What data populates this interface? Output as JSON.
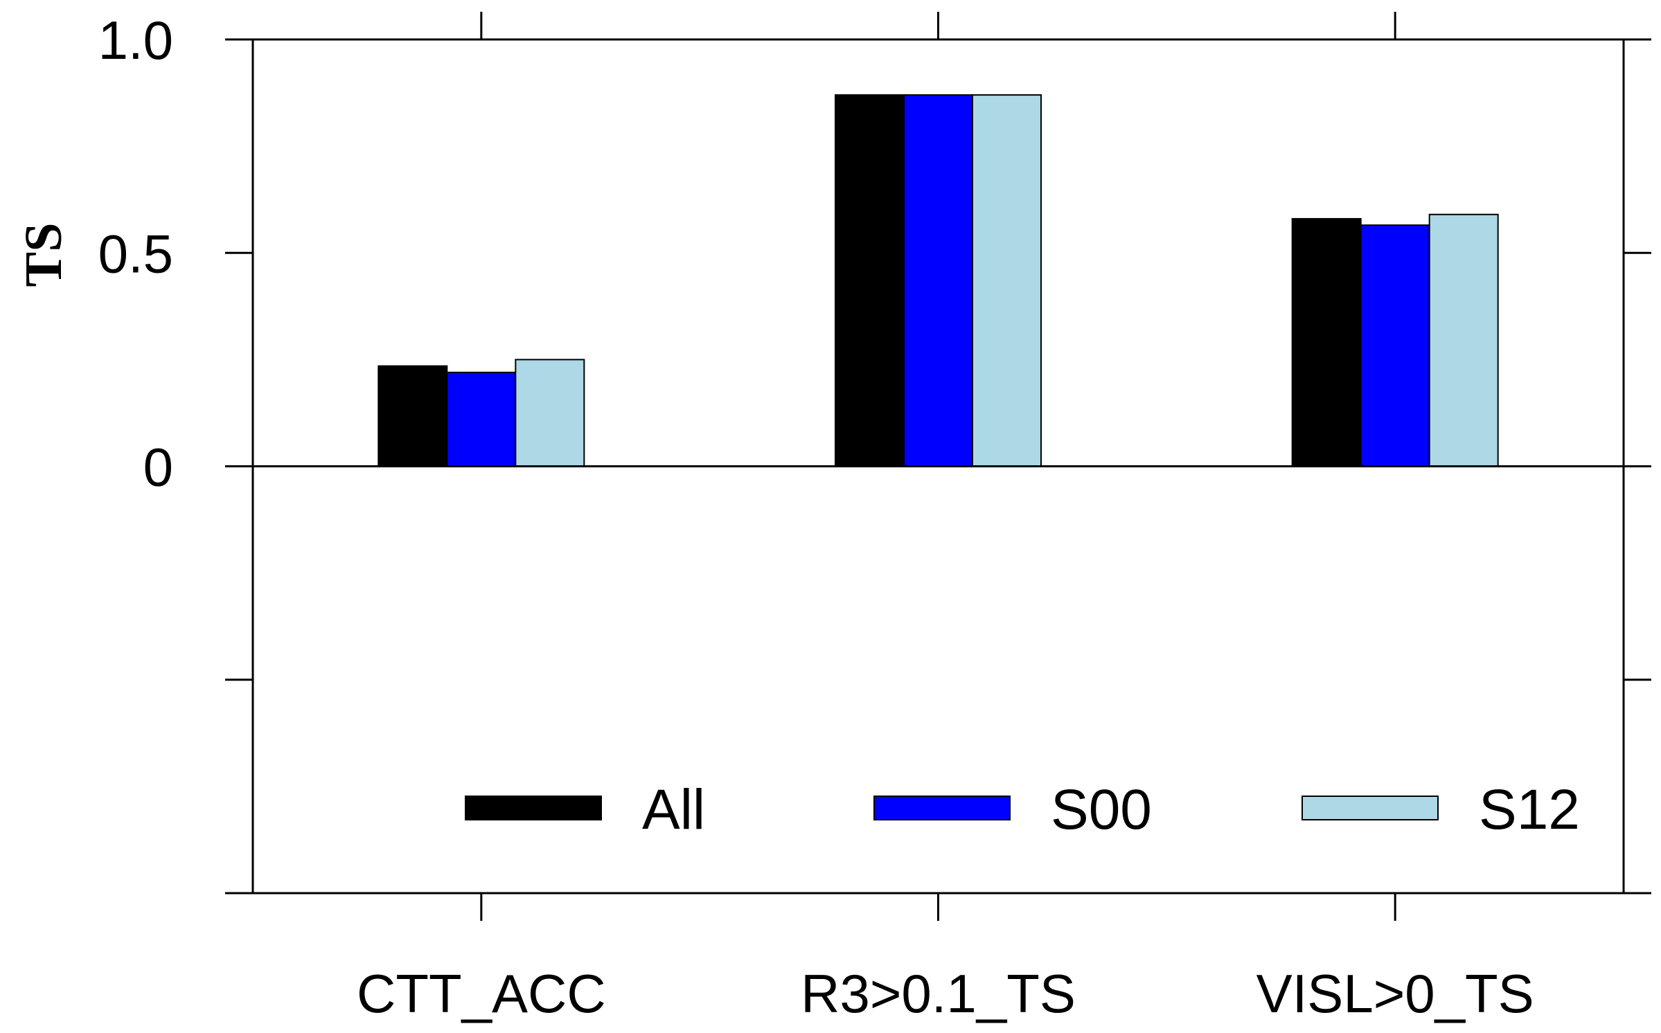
{
  "chart_data": {
    "type": "bar",
    "title": "",
    "xlabel": "",
    "ylabel": "TS",
    "ylim": [
      -1.0,
      1.0
    ],
    "yticks": [
      -1.0,
      -0.5,
      0,
      0.5,
      1.0
    ],
    "ytick_labels": [
      "",
      "",
      "0",
      "0.5",
      "1.0"
    ],
    "categories": [
      "CTT_ACC",
      "R3>0.1_TS",
      "VISL>0_TS"
    ],
    "series": [
      {
        "name": "All",
        "color": "#000000",
        "values": [
          0.235,
          0.87,
          0.58
        ]
      },
      {
        "name": "S00",
        "color": "#0000ff",
        "values": [
          0.22,
          0.87,
          0.565
        ]
      },
      {
        "name": "S12",
        "color": "#add8e6",
        "values": [
          0.25,
          0.87,
          0.59
        ]
      }
    ],
    "legend_position": "lower-inside",
    "grid": false
  }
}
